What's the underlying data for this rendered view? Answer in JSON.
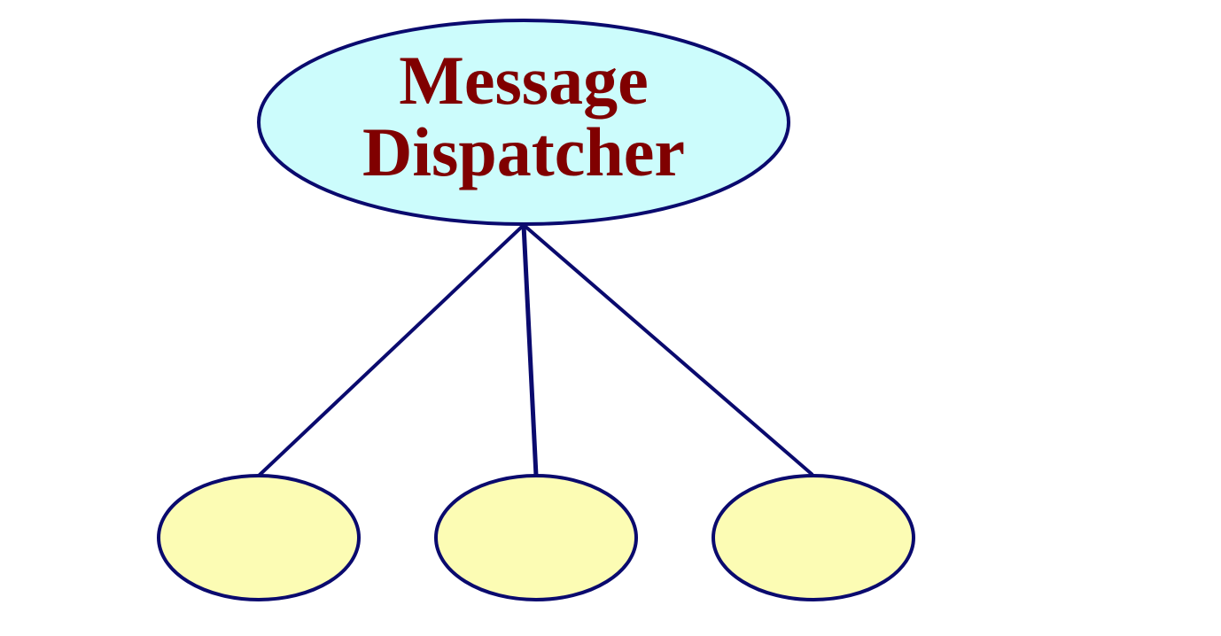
{
  "diagram": {
    "root": {
      "label_line1": "Message",
      "label_line2": "Dispatcher",
      "fill": "#ccfcfc",
      "text_color": "#800000"
    },
    "children": [
      {
        "fill": "#fcfcb4"
      },
      {
        "fill": "#fcfcb4"
      },
      {
        "fill": "#fcfcb4"
      }
    ],
    "stroke_color": "#0a0a6e"
  }
}
